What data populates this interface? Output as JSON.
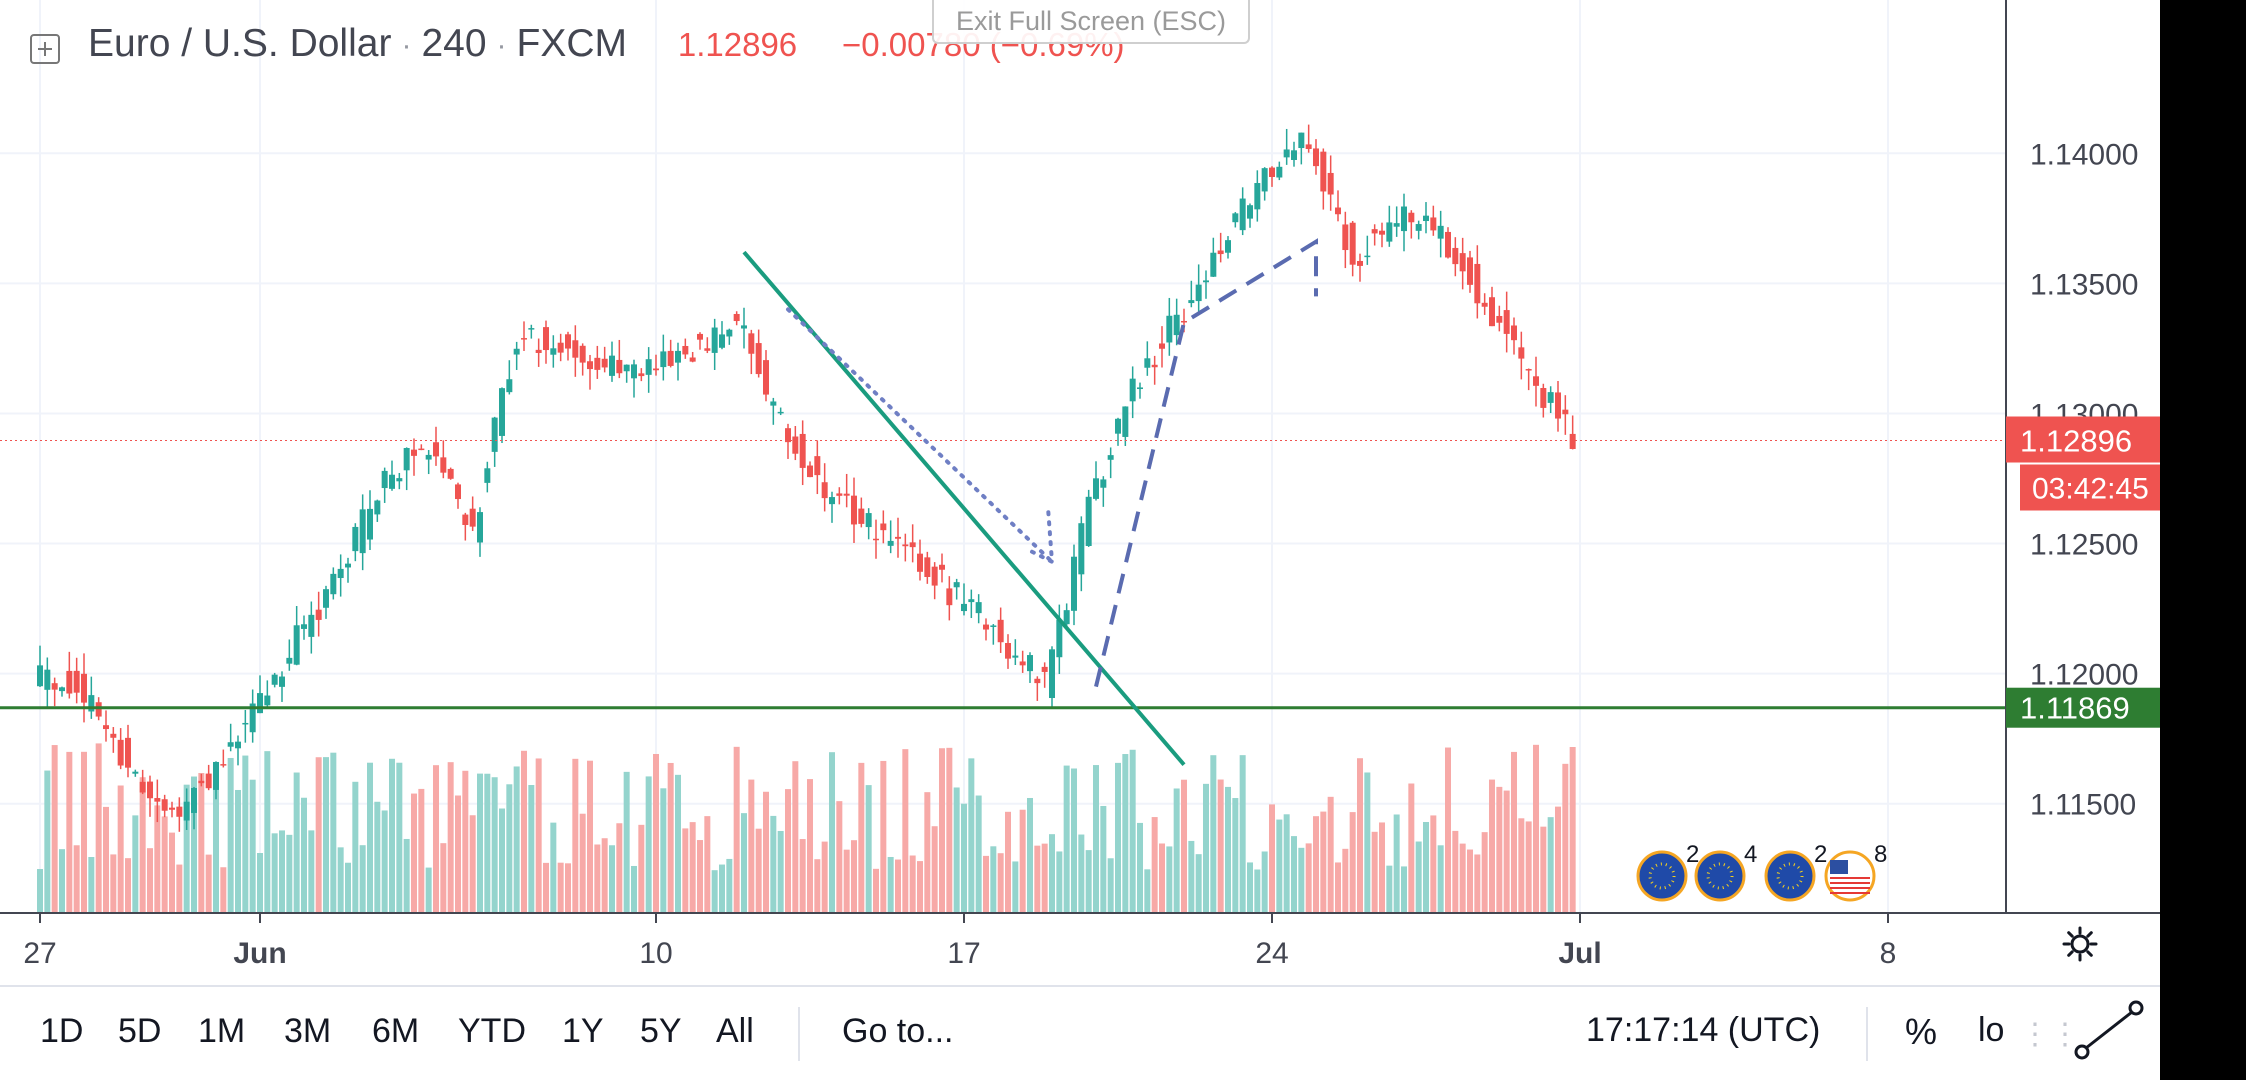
{
  "header": {
    "symbol": "Euro / U.S. Dollar",
    "interval": "240",
    "exchange": "FXCM",
    "last_price": "1.12896",
    "change": "−0.00780 (−0.69%)",
    "exit_fullscreen": "Exit Full Screen (ESC)"
  },
  "colors": {
    "up": "#26a69a",
    "down": "#ef5350",
    "vol_up": "#94d4cd",
    "vol_down": "#f7a9a7",
    "horizontal_line": "#2e7d32",
    "trendline": "#1a9c7f",
    "dotted_arrow": "#6f7fc4",
    "dashed_projection": "#5a6bb0"
  },
  "chart_data": {
    "type": "candlestick",
    "symbol": "EURUSD",
    "timeframe": "240",
    "y_axis": {
      "ylim": [
        1.1108,
        1.1432
      ],
      "ticks": [
        "1.14000",
        "1.13500",
        "1.13000",
        "1.12500",
        "1.12000",
        "1.11500"
      ]
    },
    "x_axis": {
      "ticks": [
        "27",
        "Jun",
        "10",
        "17",
        "24",
        "Jul",
        "8"
      ]
    },
    "x_days": {
      "27": 0,
      "Jun": 5,
      "10": 14,
      "17": 21,
      "24": 28,
      "Jul": 35,
      "8": 42
    },
    "price_points": [
      [
        "May 27",
        1.12
      ],
      [
        "May 28",
        1.1195
      ],
      [
        "May 29",
        1.117
      ],
      [
        "May 30",
        1.1145
      ],
      [
        "May 31",
        1.1158
      ],
      [
        "Jun 03",
        1.124
      ],
      [
        "Jun 04",
        1.1275
      ],
      [
        "Jun 05",
        1.129
      ],
      [
        "Jun 06",
        1.1255
      ],
      [
        "Jun 07",
        1.133
      ],
      [
        "Jun 10",
        1.1315
      ],
      [
        "Jun 11",
        1.1325
      ],
      [
        "Jun 12",
        1.1335
      ],
      [
        "Jun 13",
        1.1295
      ],
      [
        "Jun 14",
        1.127
      ],
      [
        "Jun 17",
        1.123
      ],
      [
        "Jun 18",
        1.1215
      ],
      [
        "Jun 19",
        1.1195
      ],
      [
        "Jun 20",
        1.1265
      ],
      [
        "Jun 21",
        1.131
      ],
      [
        "Jun 24",
        1.139
      ],
      [
        "Jun 25",
        1.1405
      ],
      [
        "Jun 26",
        1.136
      ],
      [
        "Jun 27",
        1.1375
      ],
      [
        "Jun 28",
        1.137
      ],
      [
        "Jul 01",
        1.129
      ]
    ],
    "horizontal_line": {
      "price": 1.11869,
      "label": "1.11869"
    },
    "last_price": {
      "price": 1.12896,
      "label": "1.12896",
      "countdown": "03:42:45"
    },
    "drawings": [
      {
        "type": "trendline",
        "from": [
          "Jun 12",
          1.1362
        ],
        "to": [
          "Jun 22",
          1.1165
        ]
      },
      {
        "type": "dotted_arrow",
        "from": [
          "Jun 13",
          1.134
        ],
        "to": [
          "Jun 19",
          1.1243
        ]
      },
      {
        "type": "dashed_projection",
        "points": [
          [
            "Jun 20",
            1.1195
          ],
          [
            "Jun 22",
            1.1335
          ],
          [
            "Jun 25",
            1.1366
          ],
          [
            "Jun 25",
            1.1345
          ]
        ]
      }
    ],
    "events": [
      {
        "flag": "EU",
        "count": "2"
      },
      {
        "flag": "EU/US",
        "count": "4"
      },
      {
        "flag": "EU",
        "count": "2"
      },
      {
        "flag": "US",
        "count": "8"
      }
    ]
  },
  "bottom_bar": {
    "ranges": [
      "1D",
      "5D",
      "1M",
      "3M",
      "6M",
      "YTD",
      "1Y",
      "5Y",
      "All"
    ],
    "goto": "Go to...",
    "time": "17:17:14 (UTC)",
    "percent": "%",
    "log": "lo"
  }
}
